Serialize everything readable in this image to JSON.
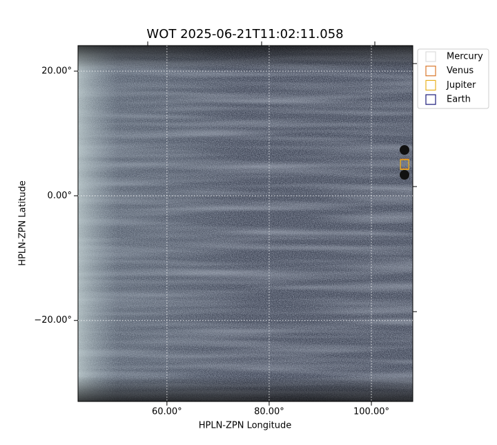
{
  "chart_data": {
    "type": "image",
    "title": "WOT 2025-06-21T11:02:11.058",
    "xlabel": "HPLN-ZPN Longitude",
    "ylabel": "HPLN-ZPN Latitude",
    "xlim": [
      42.6,
      108.1
    ],
    "ylim": [
      -33.0,
      24.1
    ],
    "xticks": [
      {
        "value": 60,
        "label": "60.00°"
      },
      {
        "value": 80,
        "label": "80.00°"
      },
      {
        "value": 100,
        "label": "100.00°"
      }
    ],
    "yticks": [
      {
        "value": -20,
        "label": "−20.00°"
      },
      {
        "value": 0,
        "label": "0.00°"
      },
      {
        "value": 20,
        "label": "20.00°"
      }
    ],
    "grid": true,
    "legend": "upper right",
    "series": [
      {
        "name": "Mercury",
        "color": "#dddddd",
        "x": [],
        "values": []
      },
      {
        "name": "Venus",
        "color": "#d9772b",
        "x": [
          106.5
        ],
        "values": [
          5.1
        ]
      },
      {
        "name": "Jupiter",
        "color": "#e8b020",
        "x": [
          106.5
        ],
        "values": [
          5.0
        ]
      },
      {
        "name": "Earth",
        "color": "#1a1a7a",
        "x": [],
        "values": []
      }
    ]
  }
}
